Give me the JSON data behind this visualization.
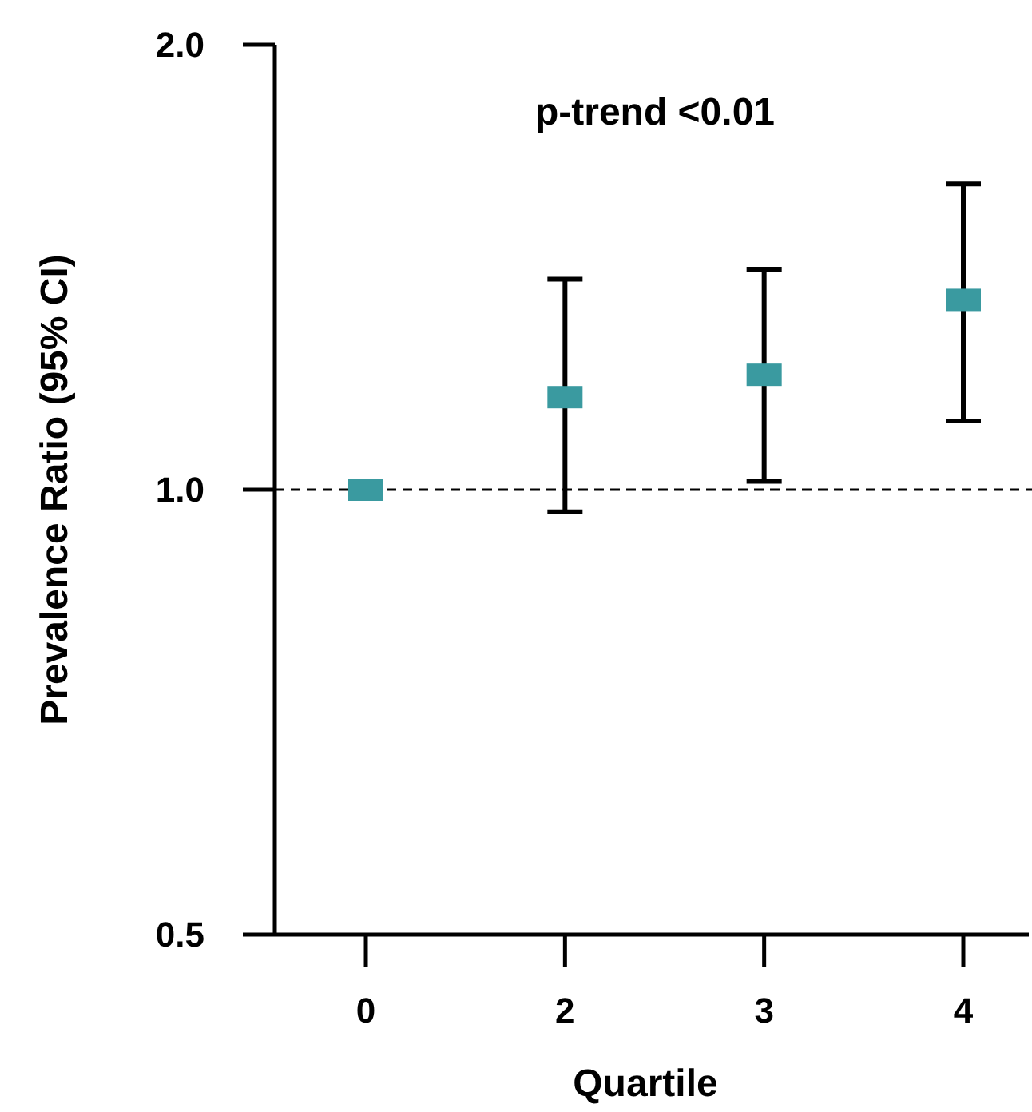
{
  "chart_data": {
    "type": "scatter",
    "xlabel": "Quartile",
    "ylabel": "Prevalence Ratio (95% CI)",
    "categories": [
      "0",
      "2",
      "3",
      "4"
    ],
    "series": [
      {
        "color": "#3a9aa0",
        "values": [
          1.0,
          1.155,
          1.196,
          1.344
        ],
        "errors": [
          null,
          [
            0.966,
            1.388
          ],
          [
            1.013,
            1.41
          ],
          [
            1.113,
            1.61
          ]
        ]
      }
    ],
    "log": true,
    "ylim": [
      0.5,
      2.0
    ],
    "yticks": [
      {
        "value": 0.5,
        "label": "0.5"
      },
      {
        "value": 1,
        "label": "1.0"
      },
      {
        "value": 2,
        "label": "2.0"
      }
    ],
    "marker": "square",
    "grid": false,
    "ref_lines": [
      {
        "axis": "y",
        "value": 1,
        "line_style": "dashed",
        "color": "#000000"
      }
    ],
    "annotations": [
      "p-trend <0.01"
    ]
  }
}
